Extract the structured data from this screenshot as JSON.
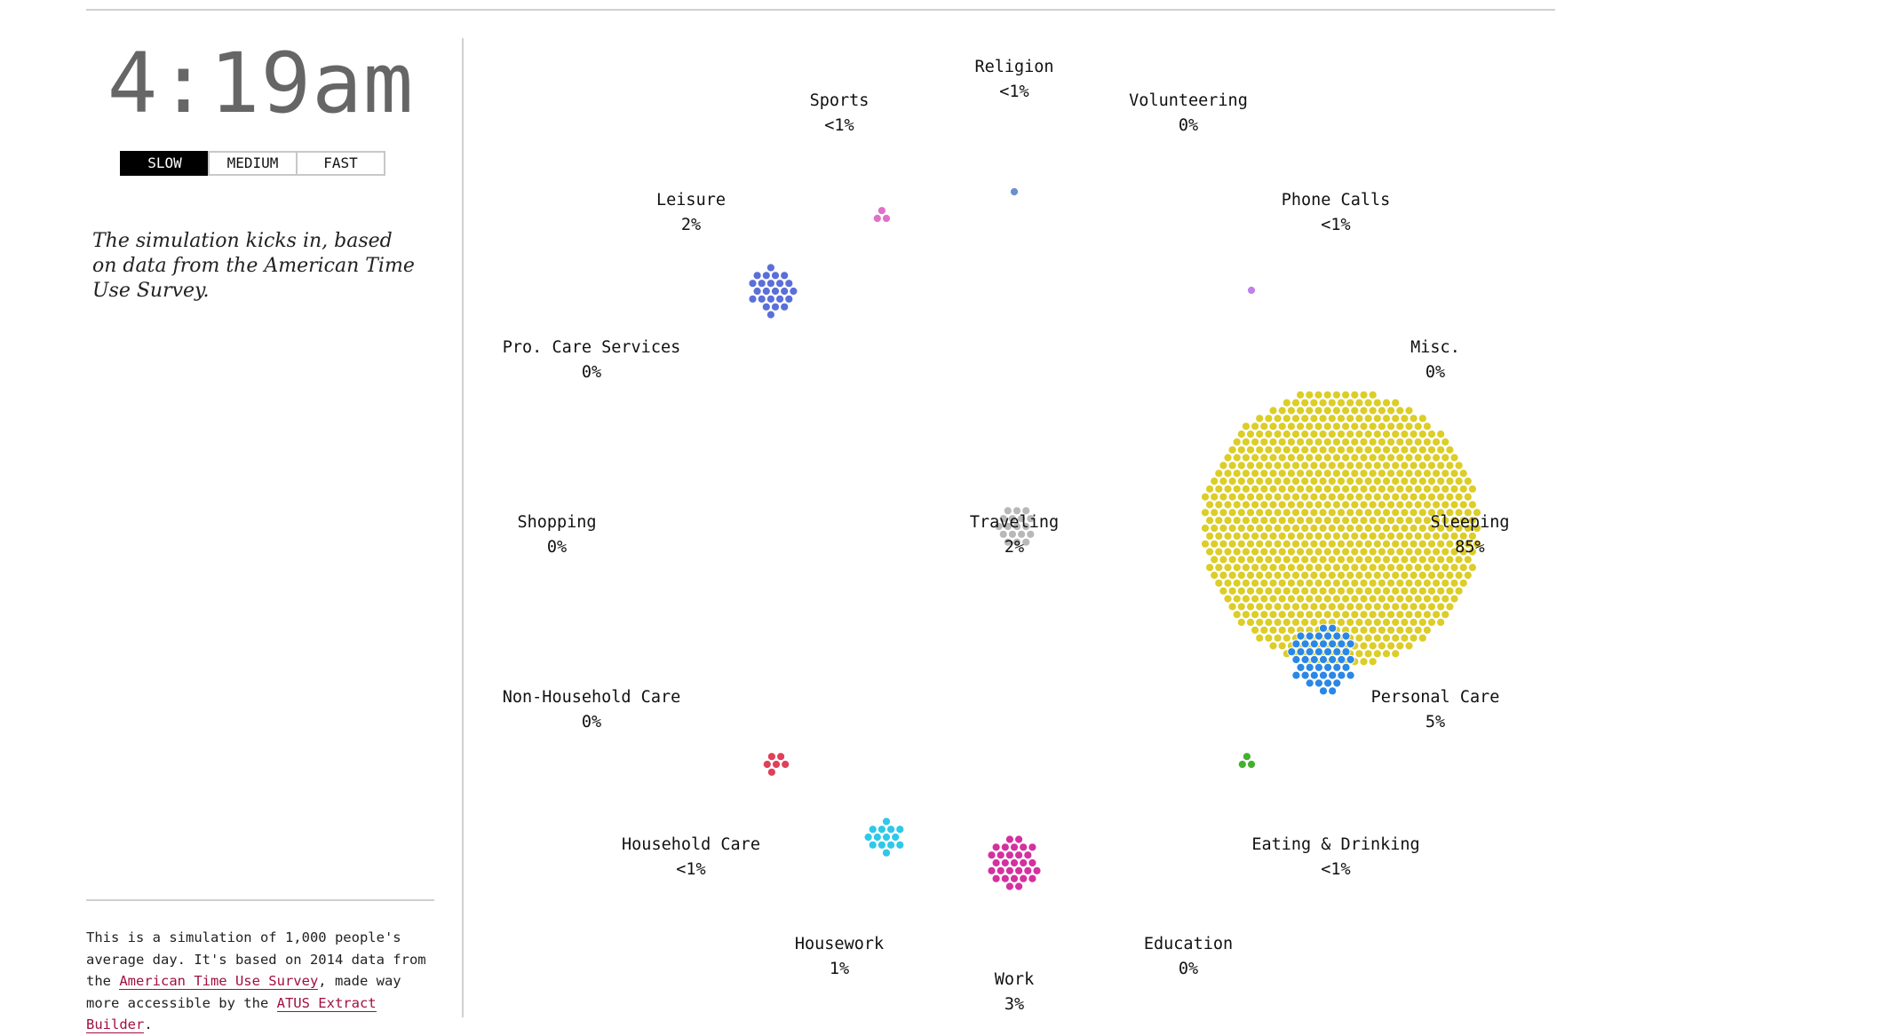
{
  "clock": {
    "time": "4:19am"
  },
  "speed": {
    "options": [
      "SLOW",
      "MEDIUM",
      "FAST"
    ],
    "selected": "SLOW"
  },
  "narrative": "The simulation kicks in, based on data from the American Time Use Survey.",
  "about": {
    "text_before": "This is a simulation of 1,000 people's average day. It's based on 2014 data from the ",
    "link1": "American Time Use Survey",
    "text_middle": ", made way more accessible by the ",
    "link2": "ATUS Extract Builder",
    "text_after": "."
  },
  "activities": [
    {
      "id": "religion",
      "name": "Religion",
      "percent": "<1%",
      "count": 1,
      "color": "#6b8fcf"
    },
    {
      "id": "sports",
      "name": "Sports",
      "percent": "<1%",
      "count": 3,
      "color": "#e070c8"
    },
    {
      "id": "volunteering",
      "name": "Volunteering",
      "percent": "0%",
      "count": 0,
      "color": "#999999"
    },
    {
      "id": "leisure",
      "name": "Leisure",
      "percent": "2%",
      "count": 24,
      "color": "#5a6fd8"
    },
    {
      "id": "phone-calls",
      "name": "Phone Calls",
      "percent": "<1%",
      "count": 1,
      "color": "#c080ee"
    },
    {
      "id": "pro-care-services",
      "name": "Pro. Care Services",
      "percent": "0%",
      "count": 0,
      "color": "#999999"
    },
    {
      "id": "misc",
      "name": "Misc.",
      "percent": "0%",
      "count": 0,
      "color": "#999999"
    },
    {
      "id": "shopping",
      "name": "Shopping",
      "percent": "0%",
      "count": 0,
      "color": "#999999"
    },
    {
      "id": "traveling",
      "name": "Traveling",
      "percent": "2%",
      "count": 18,
      "color": "#b8b8b8"
    },
    {
      "id": "sleeping",
      "name": "Sleeping",
      "percent": "85%",
      "count": 850,
      "color": "#dccd27"
    },
    {
      "id": "non-household-care",
      "name": "Non-Household Care",
      "percent": "0%",
      "count": 0,
      "color": "#999999"
    },
    {
      "id": "personal-care",
      "name": "Personal Care",
      "percent": "5%",
      "count": 48,
      "color": "#2a87e6"
    },
    {
      "id": "household-care",
      "name": "Household Care",
      "percent": "<1%",
      "count": 6,
      "color": "#e0405a"
    },
    {
      "id": "eating-drinking",
      "name": "Eating & Drinking",
      "percent": "<1%",
      "count": 3,
      "color": "#44b030"
    },
    {
      "id": "housework",
      "name": "Housework",
      "percent": "1%",
      "count": 14,
      "color": "#2ec8e8"
    },
    {
      "id": "education",
      "name": "Education",
      "percent": "0%",
      "count": 0,
      "color": "#999999"
    },
    {
      "id": "work",
      "name": "Work",
      "percent": "3%",
      "count": 30,
      "color": "#d430a0"
    }
  ]
}
